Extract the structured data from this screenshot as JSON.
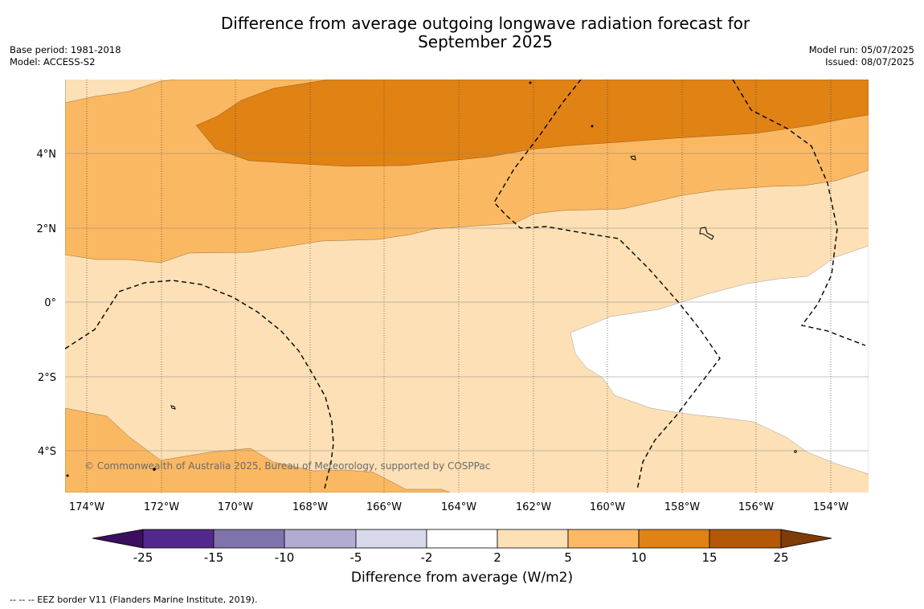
{
  "title_line1": "Difference from average outgoing longwave radiation forecast for",
  "title_line2": "September 2025",
  "base_period": "Base period: 1981-2018",
  "model": "Model: ACCESS-S2",
  "model_run": "Model run: 05/07/2025",
  "issued": "Issued: 08/07/2025",
  "copyright": "© Commonwealth of Australia 2025, Bureau of Meteorology, supported by COSPPac",
  "footnote": "--  --  -- EEZ border V11 (Flanders Marine Institute, 2019).",
  "map": {
    "lon_range": [
      -174.6,
      -153.0
    ],
    "lat_range": [
      -5.2,
      5.8
    ],
    "lon_ticks": [
      "174°W",
      "172°W",
      "170°W",
      "168°W",
      "166°W",
      "164°W",
      "162°W",
      "160°W",
      "158°W",
      "156°W",
      "154°W"
    ],
    "lon_tick_values": [
      -174,
      -172,
      -170,
      -168,
      -166,
      -164,
      -162,
      -160,
      -158,
      -156,
      -154
    ],
    "lat_ticks": [
      "4°N",
      "2°N",
      "0°",
      "2°S",
      "4°S"
    ],
    "lat_tick_values": [
      4,
      2,
      0,
      -2,
      -4
    ],
    "colors": {
      "band_2_5": "#fde0b5",
      "band_5_10": "#fbb862",
      "band_10_15": "#e08214",
      "band_neutral": "#ffffff"
    }
  },
  "colorbar": {
    "label": "Difference from average (W/m2)",
    "tick_labels": [
      "-25",
      "-15",
      "-10",
      "-5",
      "-2",
      "2",
      "5",
      "10",
      "15",
      "25"
    ],
    "colors": [
      "#3b0f5e",
      "#54278f",
      "#8073ac",
      "#b2abd2",
      "#d8daeb",
      "#ffffff",
      "#fee0b6",
      "#fdb863",
      "#e08214",
      "#b35806",
      "#7f3b08"
    ]
  }
}
